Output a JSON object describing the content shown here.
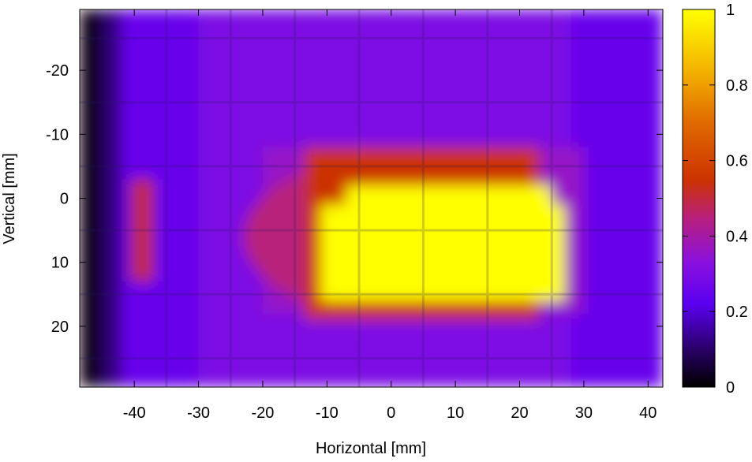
{
  "chart_data": {
    "type": "heatmap",
    "title": "",
    "xlabel": "Horizontal [mm]",
    "ylabel": "Vertical [mm]",
    "xlim": [
      -48.5,
      42.3
    ],
    "ylim": [
      -29.5,
      29.5
    ],
    "y_axis_inverted": true,
    "xticks": [
      -40,
      -30,
      -20,
      -10,
      0,
      10,
      20,
      30,
      40
    ],
    "xtick_labels": [
      "-40",
      "-30",
      "-20",
      "-10",
      "0",
      "10",
      "20",
      "30",
      "40"
    ],
    "yticks": [
      -20,
      -10,
      0,
      10,
      20
    ],
    "ytick_labels": [
      "-20",
      "-10",
      "0",
      "10",
      "20"
    ],
    "colorbar": {
      "range": [
        0,
        1
      ],
      "ticks": [
        0,
        0.2,
        0.4,
        0.6,
        0.8,
        1
      ],
      "tick_labels": [
        "0",
        "0.2",
        "0.4",
        "0.6",
        "0.8",
        "1"
      ],
      "colormap_stops": [
        {
          "value": 0.0,
          "color": "#000000"
        },
        {
          "value": 0.1,
          "color": "#2a0066"
        },
        {
          "value": 0.22,
          "color": "#5a00f0"
        },
        {
          "value": 0.33,
          "color": "#8a10e0"
        },
        {
          "value": 0.45,
          "color": "#b8207a"
        },
        {
          "value": 0.55,
          "color": "#cc3300"
        },
        {
          "value": 0.7,
          "color": "#e06a00"
        },
        {
          "value": 0.85,
          "color": "#f5b800"
        },
        {
          "value": 1.0,
          "color": "#ffff00"
        }
      ]
    },
    "grid": false,
    "legend": "colorbar-right",
    "intensity_regions": [
      {
        "shape": "rect",
        "x": [
          -48.5,
          42.3
        ],
        "y": [
          -29.5,
          29.5
        ],
        "value": 0.25
      },
      {
        "shape": "rect",
        "x": [
          -48.5,
          -45
        ],
        "y": [
          -29.5,
          29.5
        ],
        "value": 0.02
      },
      {
        "shape": "rect",
        "x": [
          -45,
          -42
        ],
        "y": [
          -29.5,
          29.5
        ],
        "value": 0.12
      },
      {
        "shape": "rect",
        "x": [
          -30,
          28
        ],
        "y": [
          -29.5,
          29.5
        ],
        "value": 0.3
      },
      {
        "shape": "rect",
        "x": [
          -20,
          30
        ],
        "y": [
          -8,
          18
        ],
        "value": 0.36
      },
      {
        "shape": "ellipse",
        "cx": 2,
        "cy": 6,
        "rx": 25,
        "ry": 13,
        "value": 0.45
      },
      {
        "shape": "rect",
        "x": [
          -13.5,
          23
        ],
        "y": [
          -8,
          19
        ],
        "value": 0.55
      },
      {
        "shape": "rect",
        "x": [
          -40.5,
          -37
        ],
        "y": [
          -3,
          13
        ],
        "value": 0.5
      },
      {
        "shape": "rect",
        "x": [
          -11,
          27
        ],
        "y": [
          1,
          16
        ],
        "value": 1.0
      },
      {
        "shape": "rect",
        "x": [
          -7,
          25
        ],
        "y": [
          -2,
          4
        ],
        "value": 1.0
      }
    ]
  }
}
